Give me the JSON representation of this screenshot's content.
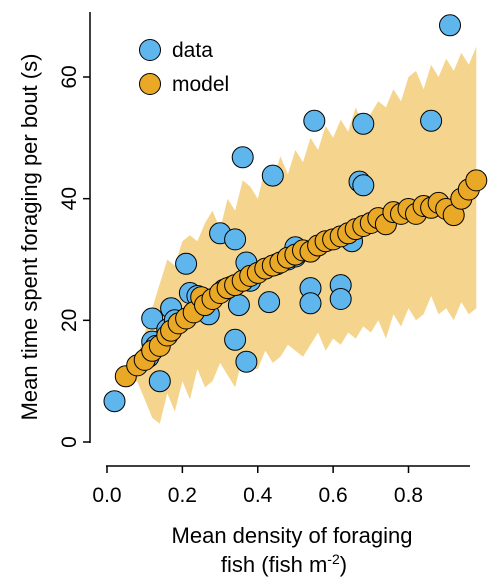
{
  "chart_data": {
    "type": "scatter",
    "title": "",
    "xlabel_line1": "Mean density of foraging",
    "xlabel_line2_main": "fish (fish m",
    "xlabel_line2_sup": "-2",
    "xlabel_line2_end": ")",
    "ylabel": "Mean time spent foraging per bout (s)",
    "xlim": [
      0.0,
      1.0
    ],
    "ylim": [
      0,
      70
    ],
    "x_ticks": [
      "0.0",
      "0.2",
      "0.4",
      "0.6",
      "0.8"
    ],
    "y_ticks": [
      "0",
      "20",
      "40",
      "60"
    ],
    "grid": false,
    "legend_position": "top-left",
    "legend": [
      {
        "label": "data",
        "color": "#5eb6ec"
      },
      {
        "label": "model",
        "color": "#e9a826"
      }
    ],
    "band_color": "#f5d48e",
    "series": [
      {
        "name": "data",
        "color": "#5eb6ec",
        "points": [
          [
            0.02,
            6.7
          ],
          [
            0.12,
            20.3
          ],
          [
            0.11,
            14.0
          ],
          [
            0.12,
            16.5
          ],
          [
            0.13,
            15.8
          ],
          [
            0.14,
            10.0
          ],
          [
            0.16,
            18.5
          ],
          [
            0.17,
            22.0
          ],
          [
            0.18,
            20.0
          ],
          [
            0.21,
            29.3
          ],
          [
            0.22,
            24.5
          ],
          [
            0.24,
            24.0
          ],
          [
            0.26,
            21.5
          ],
          [
            0.27,
            21.0
          ],
          [
            0.3,
            34.3
          ],
          [
            0.31,
            25.0
          ],
          [
            0.33,
            25.5
          ],
          [
            0.34,
            33.3
          ],
          [
            0.34,
            16.8
          ],
          [
            0.35,
            22.5
          ],
          [
            0.36,
            46.8
          ],
          [
            0.37,
            29.5
          ],
          [
            0.37,
            13.2
          ],
          [
            0.38,
            26.5
          ],
          [
            0.44,
            43.8
          ],
          [
            0.43,
            23.0
          ],
          [
            0.45,
            29.2
          ],
          [
            0.48,
            30.0
          ],
          [
            0.5,
            30.5
          ],
          [
            0.5,
            32.0
          ],
          [
            0.54,
            25.3
          ],
          [
            0.54,
            22.8
          ],
          [
            0.55,
            52.8
          ],
          [
            0.62,
            25.8
          ],
          [
            0.62,
            23.5
          ],
          [
            0.65,
            33.0
          ],
          [
            0.67,
            42.8
          ],
          [
            0.68,
            42.2
          ],
          [
            0.68,
            52.3
          ],
          [
            0.86,
            52.8
          ],
          [
            0.91,
            68.5
          ]
        ]
      },
      {
        "name": "model",
        "color": "#e9a826",
        "points": [
          [
            0.05,
            10.8
          ],
          [
            0.08,
            12.6
          ],
          [
            0.1,
            13.5
          ],
          [
            0.12,
            15.0
          ],
          [
            0.14,
            15.8
          ],
          [
            0.16,
            17.5
          ],
          [
            0.17,
            18.3
          ],
          [
            0.19,
            19.5
          ],
          [
            0.21,
            20.3
          ],
          [
            0.23,
            21.3
          ],
          [
            0.25,
            23.8
          ],
          [
            0.26,
            22.5
          ],
          [
            0.28,
            23.5
          ],
          [
            0.3,
            24.5
          ],
          [
            0.32,
            25.3
          ],
          [
            0.34,
            25.8
          ],
          [
            0.36,
            26.5
          ],
          [
            0.38,
            27.3
          ],
          [
            0.4,
            27.8
          ],
          [
            0.42,
            28.5
          ],
          [
            0.44,
            29.0
          ],
          [
            0.46,
            29.5
          ],
          [
            0.48,
            30.3
          ],
          [
            0.5,
            30.8
          ],
          [
            0.52,
            31.5
          ],
          [
            0.54,
            31.3
          ],
          [
            0.56,
            32.3
          ],
          [
            0.58,
            33.0
          ],
          [
            0.6,
            33.3
          ],
          [
            0.62,
            33.8
          ],
          [
            0.64,
            34.3
          ],
          [
            0.66,
            35.0
          ],
          [
            0.68,
            35.5
          ],
          [
            0.7,
            36.0
          ],
          [
            0.72,
            36.8
          ],
          [
            0.74,
            35.8
          ],
          [
            0.76,
            37.8
          ],
          [
            0.78,
            37.5
          ],
          [
            0.8,
            38.3
          ],
          [
            0.82,
            37.5
          ],
          [
            0.84,
            38.8
          ],
          [
            0.86,
            38.5
          ],
          [
            0.88,
            39.3
          ],
          [
            0.9,
            38.3
          ],
          [
            0.92,
            37.3
          ],
          [
            0.94,
            40.0
          ],
          [
            0.96,
            41.5
          ],
          [
            0.98,
            43.0
          ]
        ]
      }
    ],
    "band": {
      "x": [
        0.04,
        0.08,
        0.1,
        0.12,
        0.14,
        0.16,
        0.18,
        0.2,
        0.22,
        0.24,
        0.26,
        0.28,
        0.3,
        0.32,
        0.34,
        0.36,
        0.38,
        0.4,
        0.42,
        0.44,
        0.46,
        0.48,
        0.5,
        0.52,
        0.54,
        0.56,
        0.58,
        0.6,
        0.62,
        0.64,
        0.66,
        0.68,
        0.7,
        0.72,
        0.74,
        0.76,
        0.78,
        0.8,
        0.82,
        0.84,
        0.86,
        0.88,
        0.9,
        0.92,
        0.94,
        0.96,
        0.98
      ],
      "upper": [
        11,
        14,
        18,
        22,
        26,
        30,
        29,
        33,
        34,
        33,
        36,
        38,
        35,
        40,
        38,
        43,
        42,
        40,
        45,
        43,
        47,
        44,
        48,
        46,
        50,
        48,
        52,
        50,
        53,
        51,
        55,
        52,
        54,
        56,
        55,
        58,
        56,
        60,
        61,
        58,
        62,
        60,
        63,
        61,
        64,
        62,
        65
      ],
      "lower": [
        10,
        10,
        7,
        4,
        3,
        8,
        5,
        10,
        7,
        12,
        9,
        10,
        13,
        11,
        9,
        14,
        12,
        12,
        15,
        13,
        14,
        16,
        15,
        14,
        16,
        18,
        15,
        17,
        16,
        18,
        17,
        19,
        18,
        20,
        17,
        21,
        19,
        22,
        20,
        21,
        24,
        21,
        22,
        20,
        23,
        21,
        22
      ]
    }
  }
}
